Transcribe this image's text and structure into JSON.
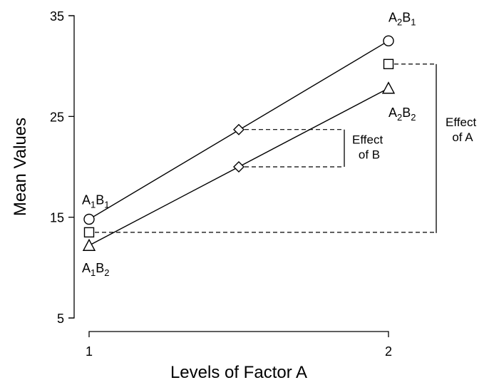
{
  "chart_data": {
    "type": "line",
    "title": "",
    "xlabel": "Levels of Factor A",
    "ylabel": "Mean Values",
    "x_ticks": [
      "1",
      "2"
    ],
    "y_ticks": [
      "5",
      "15",
      "25",
      "35"
    ],
    "xlim": [
      1,
      2
    ],
    "ylim": [
      5,
      35
    ],
    "grid": false,
    "series": [
      {
        "name": "B1",
        "marker": "circle",
        "points": [
          {
            "x": 1,
            "y": 14.8
          },
          {
            "x": 2,
            "y": 32.5
          }
        ],
        "labels": [
          {
            "base": "A",
            "sub1": "1",
            "mid": "B",
            "sub2": "1"
          },
          {
            "base": "A",
            "sub1": "2",
            "mid": "B",
            "sub2": "1"
          }
        ]
      },
      {
        "name": "B2",
        "marker": "triangle",
        "points": [
          {
            "x": 1,
            "y": 12.2
          },
          {
            "x": 2,
            "y": 27.8
          }
        ],
        "labels": [
          {
            "base": "A",
            "sub1": "1",
            "mid": "B",
            "sub2": "2"
          },
          {
            "base": "A",
            "sub1": "2",
            "mid": "B",
            "sub2": "2"
          }
        ]
      }
    ],
    "marginal_means_A": {
      "marker": "square",
      "points": [
        {
          "x": 1,
          "y": 13.5
        },
        {
          "x": 2,
          "y": 30.2
        }
      ]
    },
    "marginal_means_B": {
      "marker": "diamond",
      "points": [
        {
          "x": 1.5,
          "y": 23.7
        },
        {
          "x": 1.5,
          "y": 20.0
        }
      ]
    },
    "annotations": {
      "effect_of_b": [
        "Effect",
        "of B"
      ],
      "effect_of_a": [
        "Effect",
        "of A"
      ]
    }
  }
}
